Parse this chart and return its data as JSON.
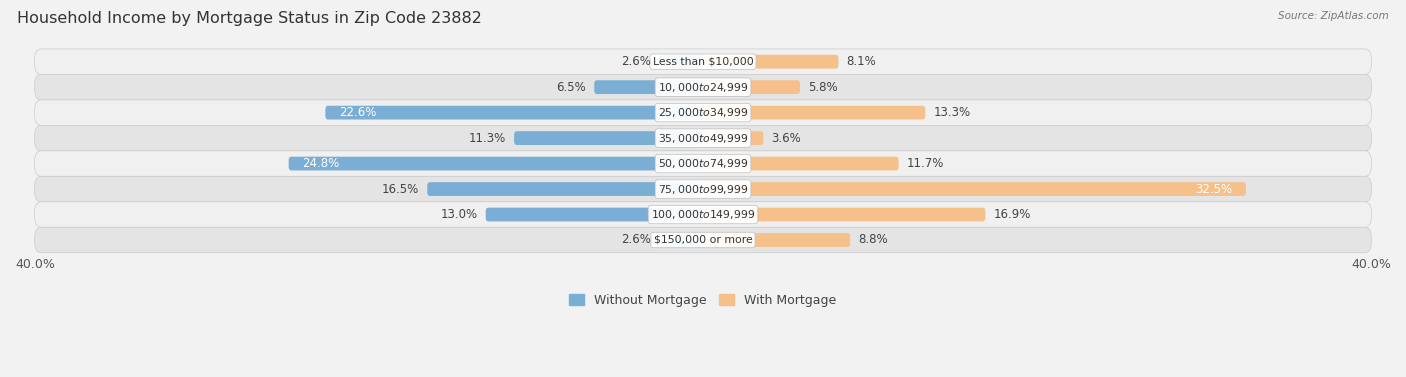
{
  "title": "Household Income by Mortgage Status in Zip Code 23882",
  "source": "Source: ZipAtlas.com",
  "categories": [
    "Less than $10,000",
    "$10,000 to $24,999",
    "$25,000 to $34,999",
    "$35,000 to $49,999",
    "$50,000 to $74,999",
    "$75,000 to $99,999",
    "$100,000 to $149,999",
    "$150,000 or more"
  ],
  "without_mortgage": [
    2.6,
    6.5,
    22.6,
    11.3,
    24.8,
    16.5,
    13.0,
    2.6
  ],
  "with_mortgage": [
    8.1,
    5.8,
    13.3,
    3.6,
    11.7,
    32.5,
    16.9,
    8.8
  ],
  "without_mortgage_color": "#7aaed4",
  "with_mortgage_color": "#f5c08a",
  "without_mortgage_color_dark": "#5a8db8",
  "with_mortgage_color_dark": "#e8a050",
  "axis_limit": 40.0,
  "background_color": "#f2f2f2",
  "row_colors": [
    "#f0f0f0",
    "#e4e4e4"
  ],
  "bar_height": 0.52,
  "title_fontsize": 11.5,
  "label_fontsize": 8.5,
  "category_fontsize": 7.8,
  "legend_fontsize": 9,
  "axis_label_fontsize": 9
}
